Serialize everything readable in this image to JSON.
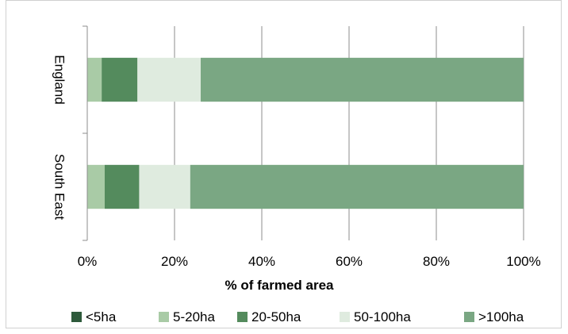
{
  "chart_data": {
    "type": "bar",
    "orientation": "horizontal",
    "stacked": true,
    "percent": true,
    "categories": [
      "England",
      "South East"
    ],
    "series": [
      {
        "name": "<5ha",
        "color": "#2e5a3b",
        "values": [
          0.0,
          0.0
        ]
      },
      {
        "name": "5-20ha",
        "color": "#a9cba6",
        "values": [
          3.3,
          4.0
        ]
      },
      {
        "name": "20-50ha",
        "color": "#548b5d",
        "values": [
          8.2,
          7.9
        ]
      },
      {
        "name": "50-100ha",
        "color": "#dfebdf",
        "values": [
          14.5,
          11.7
        ]
      },
      {
        "name": ">100ha",
        "color": "#7aa783",
        "values": [
          74.0,
          76.4
        ]
      }
    ],
    "xlabel": "% of farmed area",
    "ylabel": "",
    "xlim": [
      0,
      100
    ],
    "x_ticks": [
      "0%",
      "20%",
      "40%",
      "60%",
      "80%",
      "100%"
    ],
    "grid": "vertical",
    "legend_position": "bottom"
  }
}
